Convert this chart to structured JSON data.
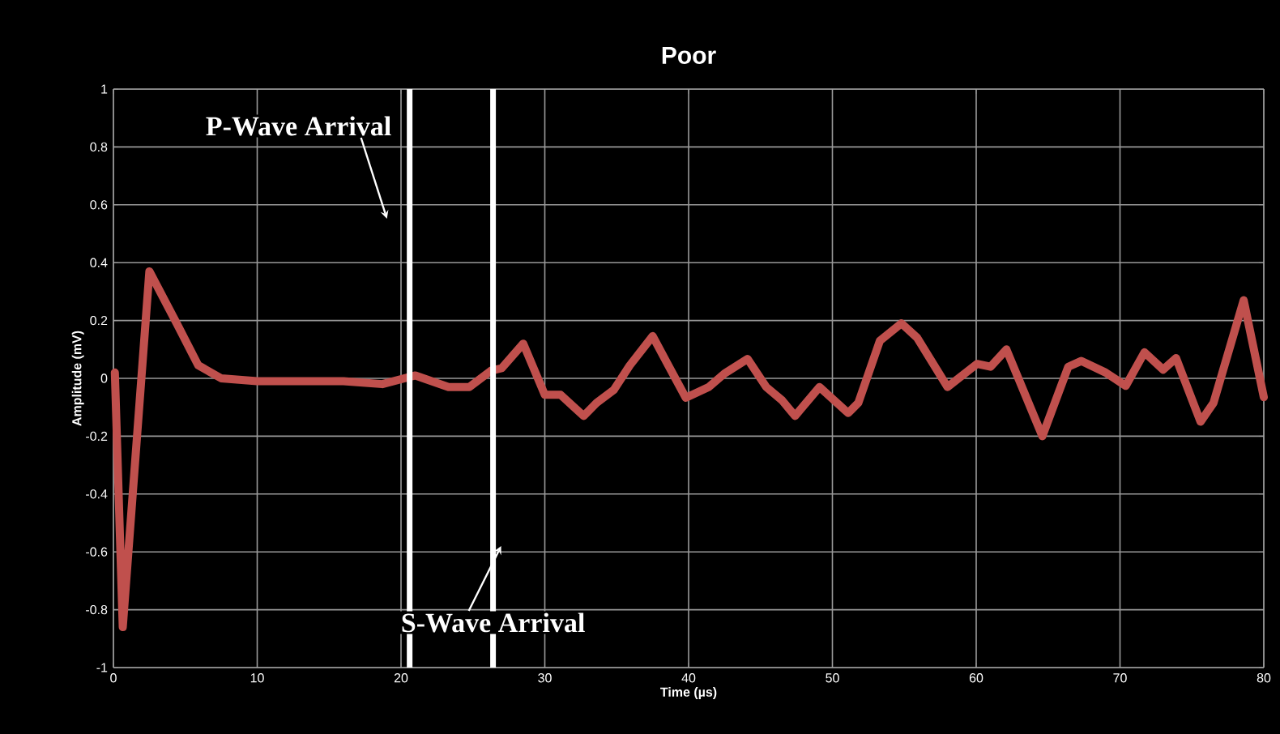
{
  "chart_data": {
    "type": "line",
    "title": "Poor",
    "xlabel": "Time (µs)",
    "ylabel": "Amplitude (mV)",
    "x": [
      0.1,
      0.65,
      2.5,
      4.4,
      5.9,
      7.5,
      10,
      12,
      14,
      16,
      18.7,
      21,
      23.3,
      24.75,
      26.25,
      27,
      28.5,
      30,
      31.1,
      32.7,
      33.6,
      34.8,
      35.9,
      37.5,
      38.6,
      39.8,
      41.4,
      42.5,
      44.1,
      45.4,
      46.5,
      47.4,
      49.1,
      51.1,
      51.8,
      53.3,
      54.8,
      55.9,
      58,
      60.06,
      61,
      62.1,
      64.6,
      66.4,
      67.3,
      69,
      70.4,
      71.7,
      73,
      73.9,
      75.6,
      76.5,
      78.6,
      80
    ],
    "series": [
      {
        "color": "#c0504d",
        "values": [
          0.02,
          -0.86,
          0.37,
          0.19,
          0.045,
          0.0,
          -0.01,
          -0.01,
          -0.01,
          -0.01,
          -0.02,
          0.01,
          -0.03,
          -0.03,
          0.026,
          0.035,
          0.12,
          -0.057,
          -0.057,
          -0.13,
          -0.085,
          -0.04,
          0.044,
          0.146,
          0.044,
          -0.067,
          -0.03,
          0.017,
          0.067,
          -0.03,
          -0.076,
          -0.13,
          -0.03,
          -0.12,
          -0.085,
          0.13,
          0.19,
          0.14,
          -0.03,
          0.05,
          0.04,
          0.1,
          -0.2,
          0.04,
          0.06,
          0.02,
          -0.026,
          0.09,
          0.03,
          0.07,
          -0.15,
          -0.085,
          0.27,
          -0.065
        ]
      }
    ],
    "xlim": [
      0,
      80
    ],
    "xticks": [
      0,
      10,
      20,
      30,
      40,
      50,
      60,
      70,
      80
    ],
    "ylim": [
      -1,
      1
    ],
    "yticks": [
      -1,
      -0.8,
      -0.6,
      -0.4,
      -0.2,
      0,
      0.2,
      0.4,
      0.6,
      0.8,
      1
    ],
    "grid": true,
    "marker": "none",
    "line_style": "solid",
    "ref_lines": [
      {
        "axis": "x",
        "value": 20.6,
        "label": "P-Wave Arrival",
        "color": "#ffffff"
      },
      {
        "axis": "x",
        "value": 26.4,
        "label": "S-Wave Arrival",
        "color": "#ffffff"
      }
    ]
  }
}
